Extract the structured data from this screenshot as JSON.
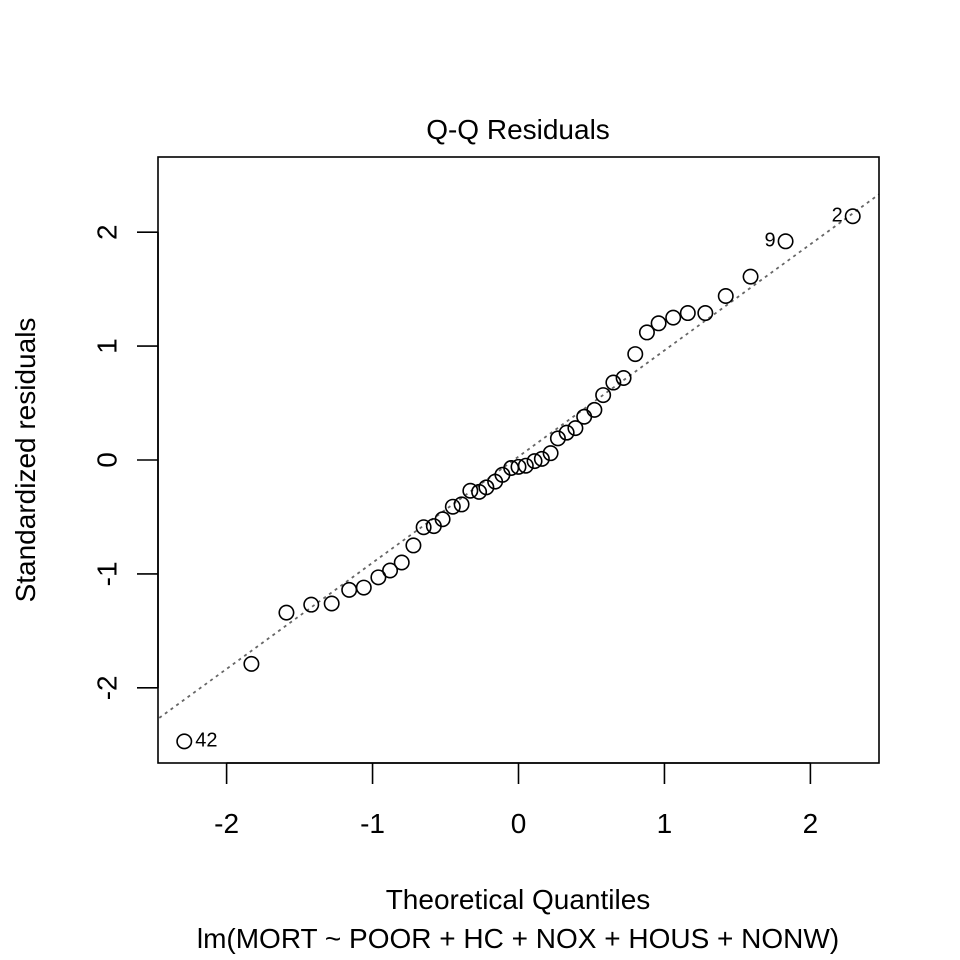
{
  "chart_data": {
    "type": "scatter",
    "title": "Q-Q Residuals",
    "xlabel": "Theoretical Quantiles",
    "sublabel": "lm(MORT ~ POOR + HC + NOX + HOUS + NONW)",
    "ylabel": "Standardized residuals",
    "xlim": [
      -2.47,
      2.47
    ],
    "ylim": [
      -2.66,
      2.66
    ],
    "x_ticks": [
      -2,
      -1,
      0,
      1,
      2
    ],
    "x_tick_labels": [
      "-2",
      "-1",
      "0",
      "1",
      "2"
    ],
    "y_ticks": [
      -2,
      -1,
      0,
      1,
      2
    ],
    "y_tick_labels": [
      "-2",
      "-1",
      "0",
      "1",
      "2"
    ],
    "grid": false,
    "reference_line": {
      "style": "dotted",
      "color": "#666666",
      "x": [
        -2.5,
        2.5
      ],
      "y": [
        -2.3,
        2.36
      ]
    },
    "points": [
      {
        "x": -2.29,
        "y": -2.47,
        "label": "42"
      },
      {
        "x": -1.83,
        "y": -1.79
      },
      {
        "x": -1.59,
        "y": -1.34
      },
      {
        "x": -1.42,
        "y": -1.27
      },
      {
        "x": -1.28,
        "y": -1.26
      },
      {
        "x": -1.16,
        "y": -1.14
      },
      {
        "x": -1.06,
        "y": -1.12
      },
      {
        "x": -0.96,
        "y": -1.03
      },
      {
        "x": -0.88,
        "y": -0.97
      },
      {
        "x": -0.8,
        "y": -0.9
      },
      {
        "x": -0.72,
        "y": -0.75
      },
      {
        "x": -0.65,
        "y": -0.59
      },
      {
        "x": -0.58,
        "y": -0.58
      },
      {
        "x": -0.52,
        "y": -0.52
      },
      {
        "x": -0.45,
        "y": -0.41
      },
      {
        "x": -0.39,
        "y": -0.39
      },
      {
        "x": -0.33,
        "y": -0.27
      },
      {
        "x": -0.27,
        "y": -0.28
      },
      {
        "x": -0.22,
        "y": -0.24
      },
      {
        "x": -0.16,
        "y": -0.19
      },
      {
        "x": -0.11,
        "y": -0.13
      },
      {
        "x": -0.05,
        "y": -0.07
      },
      {
        "x": 0.0,
        "y": -0.06
      },
      {
        "x": 0.05,
        "y": -0.05
      },
      {
        "x": 0.11,
        "y": -0.01
      },
      {
        "x": 0.16,
        "y": 0.01
      },
      {
        "x": 0.22,
        "y": 0.06
      },
      {
        "x": 0.27,
        "y": 0.19
      },
      {
        "x": 0.33,
        "y": 0.24
      },
      {
        "x": 0.39,
        "y": 0.28
      },
      {
        "x": 0.45,
        "y": 0.38
      },
      {
        "x": 0.52,
        "y": 0.44
      },
      {
        "x": 0.58,
        "y": 0.57
      },
      {
        "x": 0.65,
        "y": 0.68
      },
      {
        "x": 0.72,
        "y": 0.72
      },
      {
        "x": 0.8,
        "y": 0.93
      },
      {
        "x": 0.88,
        "y": 1.12
      },
      {
        "x": 0.96,
        "y": 1.2
      },
      {
        "x": 1.06,
        "y": 1.25
      },
      {
        "x": 1.16,
        "y": 1.29
      },
      {
        "x": 1.28,
        "y": 1.29
      },
      {
        "x": 1.42,
        "y": 1.44
      },
      {
        "x": 1.59,
        "y": 1.61
      },
      {
        "x": 1.83,
        "y": 1.92,
        "label": "9"
      },
      {
        "x": 2.29,
        "y": 2.14,
        "label": "2"
      }
    ]
  }
}
